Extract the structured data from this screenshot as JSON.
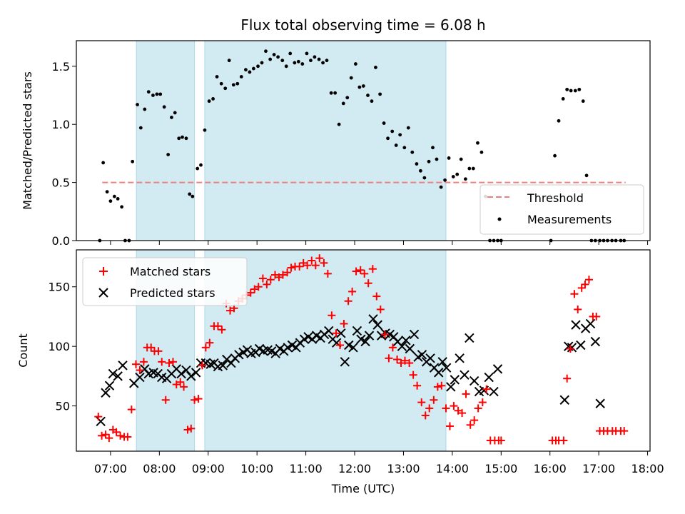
{
  "chart_data": {
    "type": "scatter",
    "title": "Flux total observing time = 6.08 h",
    "xlabel": "Time (UTC)",
    "xlim": [
      6.3,
      18.05
    ],
    "xticks": [
      "07:00",
      "08:00",
      "09:00",
      "10:00",
      "11:00",
      "12:00",
      "13:00",
      "14:00",
      "15:00",
      "16:00",
      "17:00",
      "18:00"
    ],
    "observing_windows_h": [
      [
        7.53,
        8.72
      ],
      [
        8.93,
        13.87
      ]
    ],
    "colors": {
      "window": "#add8e6",
      "threshold": "#f08080",
      "measurements": "#000000",
      "matched": "#ff0000",
      "predicted": "#000000"
    },
    "top": {
      "ylabel": "Matched/Predicted stars",
      "ylim": [
        0,
        1.72
      ],
      "yticks": [
        "0.0",
        "0.5",
        "1.0",
        "1.5"
      ],
      "threshold": {
        "name": "Threshold",
        "value": 0.5,
        "x_range": [
          6.83,
          17.55
        ]
      },
      "measurements": {
        "name": "Measurements",
        "x": [
          6.78,
          6.85,
          6.93,
          7.0,
          7.08,
          7.15,
          7.23,
          7.3,
          7.38,
          7.45,
          7.55,
          7.62,
          7.7,
          7.78,
          7.87,
          7.95,
          8.02,
          8.1,
          8.18,
          8.25,
          8.32,
          8.4,
          8.47,
          8.55,
          8.62,
          8.68,
          8.78,
          8.85,
          8.93,
          9.02,
          9.1,
          9.18,
          9.27,
          9.35,
          9.43,
          9.52,
          9.6,
          9.68,
          9.77,
          9.85,
          9.93,
          10.02,
          10.1,
          10.18,
          10.27,
          10.35,
          10.43,
          10.52,
          10.6,
          10.68,
          10.77,
          10.85,
          10.93,
          11.02,
          11.1,
          11.18,
          11.27,
          11.35,
          11.43,
          11.52,
          11.6,
          11.68,
          11.77,
          11.85,
          11.93,
          12.02,
          12.1,
          12.18,
          12.27,
          12.35,
          12.43,
          12.52,
          12.6,
          12.68,
          12.77,
          12.85,
          12.93,
          13.02,
          13.1,
          13.18,
          13.27,
          13.35,
          13.43,
          13.52,
          13.6,
          13.68,
          13.77,
          13.85,
          13.93,
          14.02,
          14.1,
          14.18,
          14.27,
          14.35,
          14.43,
          14.52,
          14.6,
          14.68,
          14.77,
          14.85,
          14.93,
          15.0,
          16.02,
          16.1,
          16.18,
          16.27,
          16.35,
          16.43,
          16.52,
          16.6,
          16.68,
          16.75,
          16.85,
          16.93,
          17.02,
          17.1,
          17.18,
          17.27,
          17.35,
          17.45,
          17.52
        ],
        "y": [
          0.0,
          0.67,
          0.42,
          0.34,
          0.38,
          0.36,
          0.29,
          0.0,
          0.0,
          0.68,
          1.17,
          0.97,
          1.13,
          1.28,
          1.25,
          1.26,
          1.26,
          1.15,
          0.74,
          1.06,
          1.1,
          0.88,
          0.89,
          0.88,
          0.4,
          0.38,
          0.62,
          0.65,
          0.95,
          1.2,
          1.22,
          1.41,
          1.35,
          1.31,
          1.55,
          1.34,
          1.35,
          1.41,
          1.47,
          1.45,
          1.48,
          1.5,
          1.53,
          1.63,
          1.56,
          1.6,
          1.58,
          1.55,
          1.5,
          1.61,
          1.53,
          1.54,
          1.52,
          1.61,
          1.55,
          1.58,
          1.56,
          1.53,
          1.55,
          1.27,
          1.27,
          1.0,
          1.18,
          1.23,
          1.4,
          1.52,
          1.32,
          1.33,
          1.25,
          1.2,
          1.49,
          1.26,
          1.01,
          0.88,
          0.94,
          0.82,
          0.91,
          0.8,
          0.97,
          0.76,
          0.66,
          0.6,
          0.54,
          0.68,
          0.8,
          0.7,
          0.46,
          0.52,
          0.71,
          0.55,
          0.57,
          0.7,
          0.53,
          0.62,
          0.62,
          0.84,
          0.76,
          0.38,
          0.0,
          0.0,
          0.0,
          0.0,
          0.0,
          0.73,
          1.03,
          1.22,
          1.3,
          1.29,
          1.29,
          1.3,
          1.2,
          0.56,
          0.0,
          0.0,
          0.0,
          0.0,
          0.0,
          0.0,
          0.0,
          0.0,
          0.0
        ]
      },
      "legend": {
        "position": "bottom-right",
        "entries": [
          "Threshold",
          "Measurements"
        ]
      }
    },
    "bottom": {
      "ylabel": "Count",
      "ylim": [
        12,
        181
      ],
      "yticks": [
        "50",
        "100",
        "150"
      ],
      "series": [
        {
          "name": "Matched stars",
          "marker": "plus",
          "x": [
            6.75,
            6.82,
            6.9,
            6.97,
            7.05,
            7.12,
            7.2,
            7.28,
            7.35,
            7.43,
            7.52,
            7.6,
            7.68,
            7.75,
            7.83,
            7.9,
            7.98,
            8.05,
            8.13,
            8.2,
            8.28,
            8.35,
            8.43,
            8.5,
            8.58,
            8.65,
            8.72,
            8.8,
            8.88,
            8.95,
            9.03,
            9.12,
            9.2,
            9.28,
            9.37,
            9.45,
            9.53,
            9.62,
            9.7,
            9.78,
            9.87,
            9.95,
            10.03,
            10.12,
            10.2,
            10.28,
            10.37,
            10.45,
            10.53,
            10.62,
            10.7,
            10.78,
            10.87,
            10.95,
            11.03,
            11.12,
            11.2,
            11.28,
            11.37,
            11.45,
            11.53,
            11.62,
            11.7,
            11.78,
            11.87,
            11.95,
            12.03,
            12.12,
            12.2,
            12.28,
            12.37,
            12.45,
            12.53,
            12.62,
            12.7,
            12.78,
            12.87,
            12.95,
            13.03,
            13.12,
            13.2,
            13.28,
            13.37,
            13.45,
            13.53,
            13.62,
            13.7,
            13.78,
            13.87,
            13.95,
            14.03,
            14.12,
            14.2,
            14.28,
            14.37,
            14.45,
            14.53,
            14.62,
            14.7,
            14.78,
            14.87,
            14.95,
            15.0,
            16.05,
            16.12,
            16.18,
            16.28,
            16.35,
            16.42,
            16.5,
            16.57,
            16.65,
            16.72,
            16.8,
            16.88,
            16.95,
            17.02,
            17.1,
            17.18,
            17.28,
            17.35,
            17.45,
            17.52
          ],
          "y": [
            41,
            25,
            26,
            23,
            30,
            28,
            25,
            24,
            24,
            47,
            85,
            80,
            87,
            99,
            99,
            96,
            96,
            87,
            55,
            86,
            87,
            68,
            70,
            66,
            30,
            31,
            55,
            56,
            84,
            99,
            103,
            117,
            117,
            114,
            136,
            130,
            132,
            138,
            140,
            143,
            145,
            148,
            150,
            157,
            152,
            156,
            160,
            158,
            160,
            162,
            166,
            167,
            167,
            170,
            168,
            172,
            168,
            174,
            170,
            161,
            126,
            111,
            101,
            119,
            138,
            146,
            163,
            164,
            161,
            153,
            165,
            142,
            131,
            110,
            90,
            99,
            89,
            86,
            88,
            86,
            76,
            67,
            53,
            42,
            48,
            55,
            66,
            67,
            48,
            33,
            50,
            46,
            44,
            60,
            34,
            38,
            48,
            53,
            64,
            21,
            21,
            21,
            21,
            21,
            21,
            21,
            21,
            73,
            98,
            144,
            131,
            149,
            152,
            156,
            125,
            125,
            29,
            29,
            29,
            29,
            29,
            29,
            29
          ]
        },
        {
          "name": "Predicted stars",
          "marker": "x",
          "x": [
            6.8,
            6.9,
            6.98,
            7.05,
            7.15,
            7.25,
            7.48,
            7.6,
            7.7,
            7.78,
            7.88,
            7.97,
            8.05,
            8.15,
            8.25,
            8.35,
            8.45,
            8.55,
            8.65,
            8.75,
            8.85,
            8.95,
            9.05,
            9.12,
            9.2,
            9.3,
            9.38,
            9.47,
            9.55,
            9.63,
            9.72,
            9.8,
            9.88,
            9.97,
            10.05,
            10.13,
            10.22,
            10.3,
            10.38,
            10.47,
            10.55,
            10.63,
            10.72,
            10.8,
            10.88,
            10.97,
            11.05,
            11.13,
            11.22,
            11.3,
            11.38,
            11.47,
            11.55,
            11.63,
            11.72,
            11.8,
            11.88,
            11.97,
            12.05,
            12.13,
            12.22,
            12.3,
            12.38,
            12.47,
            12.55,
            12.63,
            12.72,
            12.8,
            12.88,
            12.97,
            13.05,
            13.13,
            13.22,
            13.3,
            13.38,
            13.47,
            13.55,
            13.63,
            13.72,
            13.8,
            13.88,
            13.97,
            14.05,
            14.15,
            14.25,
            14.35,
            14.45,
            14.55,
            14.65,
            14.75,
            14.85,
            14.93,
            16.3,
            16.38,
            16.45,
            16.53,
            16.63,
            16.73,
            16.83,
            16.93,
            17.03
          ],
          "y": [
            37,
            61,
            67,
            77,
            75,
            84,
            69,
            74,
            81,
            77,
            78,
            77,
            74,
            73,
            77,
            81,
            77,
            80,
            75,
            78,
            86,
            86,
            85,
            86,
            83,
            84,
            89,
            86,
            90,
            93,
            95,
            97,
            94,
            95,
            98,
            96,
            97,
            96,
            94,
            98,
            96,
            99,
            101,
            99,
            103,
            106,
            108,
            106,
            109,
            107,
            110,
            113,
            106,
            103,
            111,
            87,
            101,
            99,
            113,
            106,
            104,
            109,
            123,
            118,
            109,
            111,
            110,
            108,
            104,
            100,
            105,
            98,
            110,
            91,
            93,
            87,
            90,
            82,
            78,
            87,
            82,
            66,
            72,
            90,
            76,
            107,
            71,
            62,
            63,
            74,
            62,
            81,
            55,
            100,
            99,
            118,
            101,
            115,
            119,
            104,
            52
          ]
        }
      ],
      "legend": {
        "position": "top-left",
        "entries": [
          "Matched stars",
          "Predicted stars"
        ]
      }
    }
  }
}
